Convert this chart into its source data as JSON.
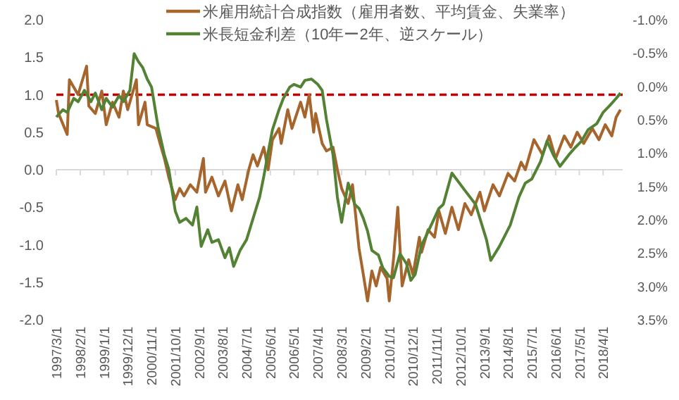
{
  "chart_data": {
    "type": "line",
    "xlim": [
      "1997-03-01",
      "2019-01-01"
    ],
    "xticks": [
      {
        "value": "1997-03-01",
        "label": "1997/3/1"
      },
      {
        "value": "1998-02-01",
        "label": "1998/2/1"
      },
      {
        "value": "1999-01-01",
        "label": "1999/1/1"
      },
      {
        "value": "1999-12-01",
        "label": "1999/12/1"
      },
      {
        "value": "2000-11-01",
        "label": "2000/11/1"
      },
      {
        "value": "2001-10-01",
        "label": "2001/10/1"
      },
      {
        "value": "2002-09-01",
        "label": "2002/9/1"
      },
      {
        "value": "2003-08-01",
        "label": "2003/8/1"
      },
      {
        "value": "2004-07-01",
        "label": "2004/7/1"
      },
      {
        "value": "2005-06-01",
        "label": "2005/6/1"
      },
      {
        "value": "2006-05-01",
        "label": "2006/5/1"
      },
      {
        "value": "2007-04-01",
        "label": "2007/4/1"
      },
      {
        "value": "2008-03-01",
        "label": "2008/3/1"
      },
      {
        "value": "2009-02-01",
        "label": "2009/2/1"
      },
      {
        "value": "2010-01-01",
        "label": "2010/1/1"
      },
      {
        "value": "2010-12-01",
        "label": "2010/12/1"
      },
      {
        "value": "2011-11-01",
        "label": "2011/11/1"
      },
      {
        "value": "2012-10-01",
        "label": "2012/10/1"
      },
      {
        "value": "2013-09-01",
        "label": "2013/9/1"
      },
      {
        "value": "2014-08-01",
        "label": "2014/8/1"
      },
      {
        "value": "2015-07-01",
        "label": "2015/7/1"
      },
      {
        "value": "2016-06-01",
        "label": "2016/6/1"
      },
      {
        "value": "2017-05-01",
        "label": "2017/5/1"
      },
      {
        "value": "2018-04-01",
        "label": "2018/4/1"
      }
    ],
    "ylim": [
      -2,
      2
    ],
    "yticks": [
      {
        "value": 2,
        "label": "2.0"
      },
      {
        "value": 1.5,
        "label": "1.5"
      },
      {
        "value": 1,
        "label": "1.0"
      },
      {
        "value": 0.5,
        "label": "0.5"
      },
      {
        "value": 0,
        "label": "0.0"
      },
      {
        "value": -0.5,
        "label": "-0.5"
      },
      {
        "value": -1,
        "label": "-1.0"
      },
      {
        "value": -1.5,
        "label": "-1.5"
      },
      {
        "value": -2,
        "label": "-2.0"
      }
    ],
    "y2lim": [
      3.5,
      -1
    ],
    "y2ticks": [
      {
        "value": -1,
        "label": "-1.0%"
      },
      {
        "value": -0.5,
        "label": "-0.5%"
      },
      {
        "value": 0,
        "label": "0.0%"
      },
      {
        "value": 0.5,
        "label": "0.5%"
      },
      {
        "value": 1,
        "label": "1.0%"
      },
      {
        "value": 1.5,
        "label": "1.5%"
      },
      {
        "value": 2,
        "label": "2.0%"
      },
      {
        "value": 2.5,
        "label": "2.5%"
      },
      {
        "value": 3,
        "label": "3.0%"
      },
      {
        "value": 3.5,
        "label": "3.5%"
      }
    ],
    "legend": "top",
    "line_style": "solid",
    "ref_lines": [
      {
        "axis": "y",
        "value": 1,
        "color": "#c00000",
        "line_style": "dashed"
      }
    ],
    "series": [
      {
        "name": "米雇用統計合成指数（雇用者数、平均賃金、失業率）",
        "color": "#a5652c",
        "x": [
          "1997-03",
          "1997-04",
          "1997-08",
          "1997-09",
          "1997-11",
          "1998-01",
          "1998-05",
          "1998-06",
          "1998-09",
          "1998-12",
          "1999-02",
          "1999-05",
          "1999-08",
          "1999-10",
          "1999-12",
          "2000-04",
          "2000-05",
          "2000-08",
          "2000-09",
          "2001-01",
          "2001-03",
          "2001-05",
          "2001-07",
          "2001-10",
          "2001-12",
          "2002-02",
          "2002-05",
          "2002-08",
          "2002-11",
          "2002-12",
          "2003-03",
          "2003-06",
          "2003-09",
          "2003-12",
          "2004-03",
          "2004-05",
          "2004-08",
          "2004-10",
          "2004-12",
          "2005-03",
          "2005-05",
          "2005-07",
          "2005-10",
          "2005-11",
          "2006-02",
          "2006-04",
          "2006-08",
          "2006-10",
          "2006-12",
          "2007-02",
          "2007-03",
          "2007-06",
          "2007-08",
          "2007-11",
          "2008-01",
          "2008-03",
          "2008-06",
          "2008-08",
          "2008-11",
          "2009-01",
          "2009-03",
          "2009-05",
          "2009-07",
          "2009-09",
          "2009-12",
          "2010-01",
          "2010-03",
          "2010-05",
          "2010-07",
          "2010-10",
          "2010-12",
          "2011-03",
          "2011-04",
          "2011-07",
          "2011-10",
          "2011-12",
          "2012-03",
          "2012-06",
          "2012-09",
          "2012-12",
          "2013-03",
          "2013-07",
          "2013-09",
          "2014-01",
          "2014-04",
          "2014-08",
          "2014-11",
          "2015-02",
          "2015-04",
          "2015-08",
          "2015-12",
          "2016-03",
          "2016-06",
          "2016-10",
          "2017-01",
          "2017-04",
          "2017-07",
          "2017-11",
          "2018-02",
          "2018-05",
          "2018-08",
          "2018-10",
          "2018-12"
        ],
        "values": [
          0.93,
          0.75,
          0.47,
          1.2,
          1.1,
          1.0,
          1.38,
          0.85,
          0.75,
          1.05,
          0.6,
          0.9,
          0.7,
          1.05,
          0.8,
          1.2,
          0.6,
          0.9,
          0.6,
          0.55,
          0.35,
          0.15,
          -0.1,
          -0.4,
          -0.25,
          -0.35,
          -0.2,
          -0.3,
          0.15,
          -0.3,
          -0.1,
          -0.35,
          -0.15,
          -0.55,
          -0.2,
          -0.4,
          0.0,
          0.2,
          0.05,
          0.3,
          0.0,
          0.4,
          0.55,
          0.35,
          0.8,
          0.55,
          0.9,
          0.7,
          1.0,
          0.5,
          0.75,
          0.35,
          0.25,
          0.3,
          0.0,
          -0.25,
          -0.45,
          -0.2,
          -1.05,
          -1.4,
          -1.75,
          -1.35,
          -1.55,
          -1.3,
          -1.45,
          -1.75,
          -1.2,
          -0.5,
          -1.55,
          -1.2,
          -1.4,
          -0.9,
          -1.1,
          -0.8,
          -0.9,
          -0.55,
          -0.85,
          -0.5,
          -0.8,
          -0.45,
          -0.6,
          -0.3,
          -0.55,
          -0.2,
          -0.35,
          -0.05,
          -0.15,
          0.1,
          0.0,
          0.4,
          0.2,
          0.45,
          0.15,
          0.45,
          0.3,
          0.5,
          0.35,
          0.55,
          0.4,
          0.6,
          0.45,
          0.7,
          0.8
        ]
      },
      {
        "name": "米長短金利差（10年ー2年、逆スケール）",
        "color": "#548235",
        "axis": "y2",
        "x": [
          "1997-03",
          "1997-06",
          "1997-08",
          "1997-11",
          "1998-01",
          "1998-04",
          "1998-07",
          "1998-09",
          "1998-12",
          "1999-02",
          "1999-05",
          "1999-08",
          "1999-10",
          "2000-01",
          "2000-03",
          "2000-05",
          "2000-07",
          "2000-09",
          "2000-11",
          "2001-02",
          "2001-05",
          "2001-07",
          "2001-10",
          "2001-12",
          "2002-03",
          "2002-06",
          "2002-08",
          "2002-10",
          "2003-01",
          "2003-03",
          "2003-06",
          "2003-09",
          "2003-11",
          "2004-01",
          "2004-04",
          "2004-07",
          "2004-10",
          "2005-01",
          "2005-03",
          "2005-05",
          "2005-07",
          "2005-10",
          "2005-12",
          "2006-03",
          "2006-05",
          "2006-08",
          "2006-10",
          "2007-01",
          "2007-04",
          "2007-06",
          "2007-08",
          "2007-11",
          "2008-01",
          "2008-03",
          "2008-06",
          "2008-09",
          "2008-11",
          "2009-01",
          "2009-03",
          "2009-05",
          "2009-08",
          "2009-10",
          "2010-01",
          "2010-03",
          "2010-06",
          "2010-09",
          "2010-11",
          "2011-01",
          "2011-04",
          "2011-06",
          "2011-09",
          "2011-12",
          "2012-02",
          "2012-06",
          "2012-12",
          "2013-05",
          "2013-10",
          "2013-12",
          "2014-04",
          "2014-09",
          "2015-01",
          "2015-04",
          "2015-07",
          "2015-11",
          "2016-02",
          "2016-05",
          "2016-08",
          "2016-12",
          "2017-03",
          "2017-06",
          "2017-09",
          "2018-01",
          "2018-04",
          "2018-07",
          "2018-10",
          "2018-12"
        ],
        "values": [
          0.46,
          0.35,
          0.39,
          0.18,
          0.23,
          0.06,
          0.23,
          0.1,
          0.35,
          0.18,
          0.31,
          0.14,
          0.23,
          0.06,
          -0.49,
          -0.37,
          -0.28,
          -0.11,
          0.01,
          0.61,
          1.03,
          1.24,
          1.87,
          2.04,
          1.98,
          2.08,
          1.81,
          2.4,
          2.15,
          2.34,
          2.3,
          2.57,
          2.42,
          2.7,
          2.46,
          2.3,
          1.98,
          1.66,
          1.35,
          0.99,
          0.65,
          0.35,
          0.18,
          0.01,
          -0.03,
          0.01,
          -0.09,
          -0.11,
          -0.03,
          0.06,
          0.5,
          1.03,
          1.66,
          2.04,
          1.45,
          1.77,
          1.83,
          1.98,
          2.17,
          2.46,
          2.53,
          2.72,
          2.85,
          2.87,
          2.51,
          2.66,
          2.91,
          2.82,
          2.38,
          2.25,
          2.04,
          1.83,
          1.77,
          1.3,
          1.56,
          1.77,
          2.3,
          2.61,
          2.4,
          2.08,
          1.66,
          1.45,
          1.39,
          1.13,
          0.82,
          1.03,
          1.2,
          1.03,
          0.92,
          0.82,
          0.65,
          0.56,
          0.39,
          0.29,
          0.18,
          0.1
        ]
      }
    ]
  }
}
